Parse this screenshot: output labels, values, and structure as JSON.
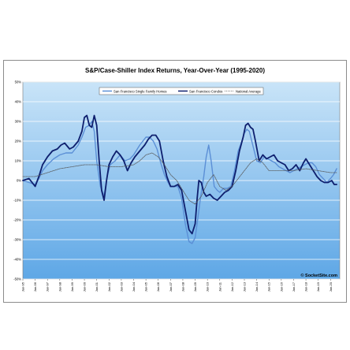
{
  "chart_data": {
    "type": "line",
    "title": "S&P/Case-Shiller Index Returns, Year-Over-Year (1995-2020)",
    "xlabel": "",
    "ylabel": "",
    "ylim": [
      -50,
      50
    ],
    "yticks": [
      "50%",
      "40%",
      "30%",
      "20%",
      "10%",
      "0%",
      "-10%",
      "-20%",
      "-30%",
      "-40%",
      "-50%"
    ],
    "xlim": [
      1995.0,
      2020.75
    ],
    "xticks": [
      "Jan-95",
      "Jan-96",
      "Jan-97",
      "Jan-98",
      "Jan-99",
      "Jan-00",
      "Jan-01",
      "Jan-02",
      "Jan-03",
      "Jan-04",
      "Jan-05",
      "Jan-06",
      "Jan-07",
      "Jan-08",
      "Jan-09",
      "Jan-10",
      "Jan-11",
      "Jan-12",
      "Jan-13",
      "Jan-14",
      "Jan-15",
      "Jan-16",
      "Jan-17",
      "Jan-18",
      "Jan-19",
      "Jan-20"
    ],
    "grid": true,
    "legend_position": "top",
    "source_label": "© SocketSite.com",
    "series": [
      {
        "name": "San Francisco Single Family Homes",
        "color": "#5b8fd6",
        "style": "solid",
        "x": [
          1995.0,
          1995.5,
          1996.0,
          1996.3,
          1996.6,
          1997.0,
          1997.5,
          1998.0,
          1998.5,
          1999.0,
          1999.5,
          1999.8,
          2000.1,
          2000.4,
          2000.6,
          2000.8,
          2001.0,
          2001.3,
          2001.6,
          2001.85,
          2002.1,
          2002.5,
          2002.9,
          2003.3,
          2003.7,
          2004.0,
          2004.5,
          2005.0,
          2005.3,
          2005.6,
          2005.9,
          2006.2,
          2006.5,
          2006.8,
          2007.0,
          2007.3,
          2007.6,
          2007.9,
          2008.2,
          2008.5,
          2008.75,
          2009.0,
          2009.2,
          2009.45,
          2009.7,
          2009.9,
          2010.1,
          2010.3,
          2010.55,
          2010.8,
          2011.0,
          2011.3,
          2011.6,
          2011.9,
          2012.2,
          2012.5,
          2012.8,
          2013.0,
          2013.2,
          2013.4,
          2013.6,
          2013.8,
          2014.0,
          2014.3,
          2014.6,
          2014.9,
          2015.2,
          2015.5,
          2015.8,
          2016.1,
          2016.4,
          2016.7,
          2017.0,
          2017.3,
          2017.6,
          2017.9,
          2018.2,
          2018.5,
          2018.8,
          2019.1,
          2019.4,
          2019.7,
          2020.0,
          2020.25,
          2020.5
        ],
        "y": [
          0,
          -1,
          -2,
          1,
          5,
          8,
          11,
          13,
          14,
          14,
          18,
          22,
          27,
          28,
          30,
          25,
          10,
          -3,
          -8,
          2,
          8,
          10,
          13,
          10,
          11,
          13,
          18,
          22,
          22,
          20,
          16,
          9,
          3,
          -1,
          -3,
          -3,
          -3,
          -9,
          -22,
          -31,
          -32,
          -29,
          -20,
          -8,
          2,
          12,
          18,
          10,
          -3,
          -5,
          -6,
          -4,
          -4,
          -3,
          5,
          15,
          20,
          24,
          26,
          25,
          20,
          15,
          10,
          9,
          12,
          11,
          10,
          9,
          7,
          6,
          5,
          4,
          5,
          6,
          7,
          8,
          9,
          9,
          7,
          3,
          1,
          -1,
          1,
          3,
          6
        ]
      },
      {
        "name": "San Francisco Condos",
        "color": "#0e1f6e",
        "style": "solid",
        "x": [
          1995.0,
          1995.5,
          1996.0,
          1996.3,
          1996.6,
          1997.0,
          1997.4,
          1997.8,
          1998.1,
          1998.4,
          1998.8,
          1999.1,
          1999.5,
          1999.8,
          2000.0,
          2000.2,
          2000.4,
          2000.6,
          2000.8,
          2001.0,
          2001.2,
          2001.4,
          2001.6,
          2001.8,
          2002.0,
          2002.3,
          2002.6,
          2002.9,
          2003.2,
          2003.5,
          2003.8,
          2004.1,
          2004.5,
          2004.9,
          2005.2,
          2005.5,
          2005.8,
          2006.1,
          2006.4,
          2006.7,
          2007.0,
          2007.3,
          2007.6,
          2007.9,
          2008.2,
          2008.5,
          2008.75,
          2009.0,
          2009.15,
          2009.3,
          2009.5,
          2009.7,
          2009.9,
          2010.2,
          2010.5,
          2010.8,
          2011.1,
          2011.4,
          2011.7,
          2012.0,
          2012.3,
          2012.6,
          2012.9,
          2013.1,
          2013.3,
          2013.5,
          2013.7,
          2013.9,
          2014.2,
          2014.5,
          2014.8,
          2015.1,
          2015.4,
          2015.7,
          2016.0,
          2016.3,
          2016.6,
          2016.9,
          2017.2,
          2017.5,
          2017.8,
          2018.0,
          2018.3,
          2018.6,
          2018.9,
          2019.2,
          2019.5,
          2019.8,
          2020.1,
          2020.3,
          2020.5
        ],
        "y": [
          0,
          1,
          -3,
          2,
          8,
          12,
          15,
          16,
          18,
          19,
          16,
          17,
          20,
          25,
          32,
          33,
          28,
          27,
          33,
          28,
          10,
          -5,
          -10,
          0,
          8,
          12,
          15,
          13,
          10,
          5,
          9,
          12,
          15,
          18,
          21,
          23,
          23,
          20,
          10,
          2,
          -3,
          -3,
          -2,
          -5,
          -15,
          -25,
          -27,
          -22,
          -10,
          0,
          -1,
          -6,
          -8,
          -7,
          -9,
          -10,
          -8,
          -6,
          -5,
          -3,
          5,
          15,
          22,
          28,
          29,
          27,
          26,
          20,
          10,
          13,
          11,
          12,
          13,
          10,
          9,
          8,
          5,
          6,
          8,
          5,
          9,
          11,
          8,
          5,
          2,
          0,
          -1,
          -1,
          0,
          -2,
          -2
        ]
      },
      {
        "name": "National Average",
        "color": "#555555",
        "style": "dotted",
        "x": [
          1995.0,
          1996.0,
          1997.0,
          1998.0,
          1999.0,
          2000.0,
          2001.0,
          2002.0,
          2003.0,
          2004.0,
          2004.5,
          2005.0,
          2005.5,
          2006.0,
          2006.5,
          2007.0,
          2007.5,
          2008.0,
          2008.5,
          2009.0,
          2009.5,
          2010.0,
          2010.5,
          2011.0,
          2011.5,
          2012.0,
          2012.5,
          2013.0,
          2013.5,
          2014.0,
          2014.5,
          2015.0,
          2016.0,
          2017.0,
          2018.0,
          2019.0,
          2020.0,
          2020.5
        ],
        "y": [
          2,
          2,
          4,
          6,
          7,
          8,
          8,
          7,
          7,
          8,
          10,
          13,
          14,
          12,
          8,
          3,
          0,
          -5,
          -10,
          -12,
          -8,
          -1,
          3,
          -3,
          -5,
          -3,
          1,
          5,
          9,
          11,
          9,
          5,
          5,
          5,
          6,
          5,
          4,
          4
        ]
      }
    ]
  }
}
